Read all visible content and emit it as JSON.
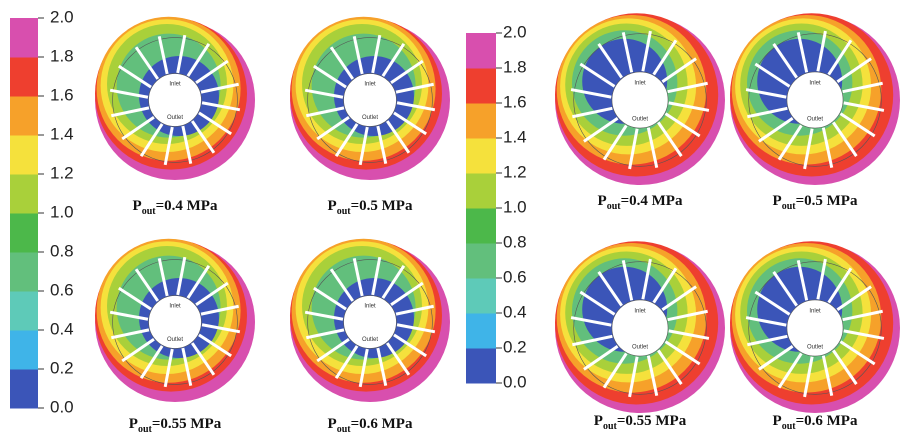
{
  "colorbars": [
    {
      "ticks": [
        "0.0",
        "0.2",
        "0.4",
        "0.6",
        "0.8",
        "1.0",
        "1.2",
        "1.4",
        "1.6",
        "1.8",
        "2.0"
      ]
    },
    {
      "ticks": [
        "0.0",
        "0.2",
        "0.4",
        "0.6",
        "0.8",
        "1.0",
        "1.2",
        "1.4",
        "1.6",
        "1.8",
        "2.0"
      ]
    }
  ],
  "panels": [
    {
      "p": "P",
      "sub": "out",
      "value": "=0.4 MPa",
      "inlet": "Inlet",
      "outlet": "Outlet"
    },
    {
      "p": "P",
      "sub": "out",
      "value": "=0.5 MPa",
      "inlet": "Inlet",
      "outlet": "Outlet"
    },
    {
      "p": "P",
      "sub": "out",
      "value": "=0.55 MPa",
      "inlet": "Inlet",
      "outlet": "Outlet"
    },
    {
      "p": "P",
      "sub": "out",
      "value": "=0.6 MPa",
      "inlet": "Inlet",
      "outlet": "Outlet"
    },
    {
      "p": "P",
      "sub": "out",
      "value": "=0.4 MPa",
      "inlet": "Inlet",
      "outlet": "Outlet"
    },
    {
      "p": "P",
      "sub": "out",
      "value": "=0.5 MPa",
      "inlet": "Inlet",
      "outlet": "Outlet"
    },
    {
      "p": "P",
      "sub": "out",
      "value": "=0.55 MPa",
      "inlet": "Inlet",
      "outlet": "Outlet"
    },
    {
      "p": "P",
      "sub": "out",
      "value": "=0.6 MPa",
      "inlet": "Inlet",
      "outlet": "Outlet"
    }
  ]
}
